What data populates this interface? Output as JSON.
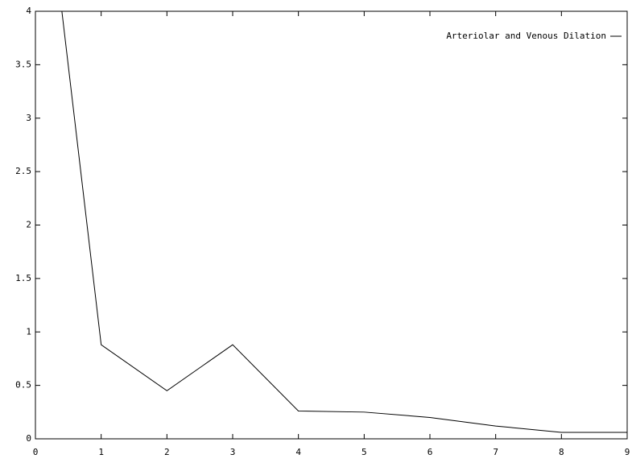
{
  "chart_data": {
    "type": "line",
    "x": [
      0,
      1,
      2,
      3,
      4,
      5,
      6,
      7,
      8,
      9
    ],
    "series": [
      {
        "name": "Arteriolar and Venous Dilation",
        "color": "#000000",
        "values": [
          6.1,
          0.88,
          0.45,
          0.88,
          0.26,
          0.25,
          0.2,
          0.12,
          0.06,
          0.06
        ]
      }
    ],
    "xlim": [
      0,
      9
    ],
    "xticks": [
      0,
      1,
      2,
      3,
      4,
      5,
      6,
      7,
      8,
      9
    ],
    "ylim": [
      0,
      4
    ],
    "yticks": [
      0,
      0.5,
      1,
      1.5,
      2,
      2.5,
      3,
      3.5,
      4
    ],
    "legend": "upper right"
  }
}
